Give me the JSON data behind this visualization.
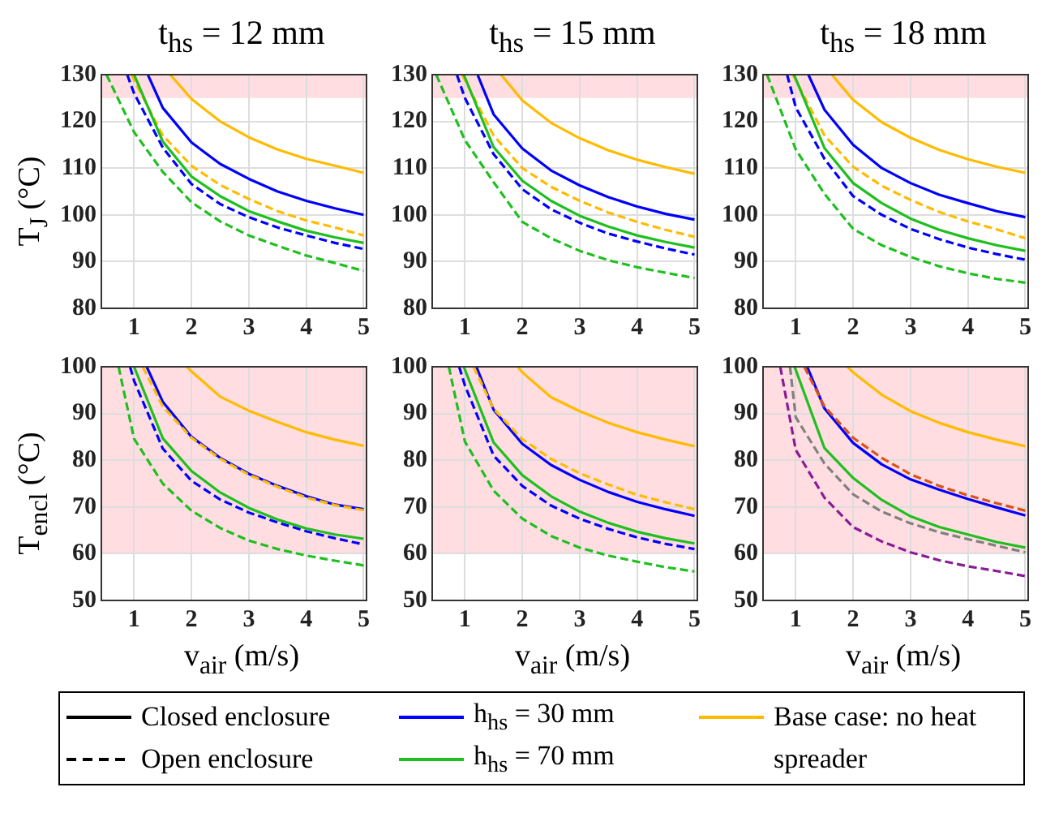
{
  "chart_data": [
    {
      "type": "line",
      "title": "t$_{hs}$ = 12 mm",
      "ylabel": "T$_{J}$ (°C)",
      "xlim": [
        0.43,
        5.05
      ],
      "xticks": [
        1,
        2,
        3,
        4,
        5
      ],
      "ylim": [
        80,
        130
      ],
      "yticks": [
        80,
        90,
        100,
        110,
        120,
        130
      ],
      "grid": true,
      "legend": false,
      "bands": [
        {
          "axis": "y",
          "from": 125,
          "to": 130,
          "color": "#ffdde1"
        }
      ],
      "series": [
        {
          "color": "#ffbb00",
          "line_style": "solid",
          "x": [
            1.63,
            2,
            2.5,
            3,
            3.5,
            4,
            4.5,
            5
          ],
          "values": [
            130,
            124.8,
            120,
            116.6,
            114,
            112,
            110.5,
            109
          ]
        },
        {
          "color": "#0000ff",
          "line_style": "solid",
          "x": [
            1.24,
            1.5,
            2,
            2.5,
            3,
            3.5,
            4,
            4.5,
            5
          ],
          "values": [
            130,
            122.9,
            115.5,
            110.9,
            107.7,
            105,
            103,
            101.4,
            100
          ]
        },
        {
          "color": "#1fbf1f",
          "line_style": "solid",
          "x": [
            1,
            1.5,
            2,
            2.5,
            3,
            3.5,
            4,
            4.5,
            5
          ],
          "values": [
            130,
            115.7,
            108.2,
            104,
            100.8,
            98.6,
            96.6,
            95.2,
            94
          ]
        },
        {
          "color": "#ffbb00",
          "line_style": "dashed",
          "x": [
            0.95,
            1.5,
            2,
            2.5,
            3,
            3.5,
            4,
            4.5,
            5
          ],
          "values": [
            130,
            117,
            110.5,
            106.4,
            103.4,
            100.8,
            98.8,
            97.3,
            95.6
          ]
        },
        {
          "color": "#0000ff",
          "line_style": "dashed",
          "x": [
            0.88,
            1,
            1.5,
            2,
            2.5,
            3,
            3.5,
            4,
            4.5,
            5
          ],
          "values": [
            130,
            126,
            114.4,
            106.6,
            102.3,
            99.5,
            97.3,
            95.6,
            94,
            92.7
          ]
        },
        {
          "color": "#1fbf1f",
          "line_style": "dashed",
          "x": [
            0.52,
            1,
            1.5,
            2,
            2.5,
            3,
            3.5,
            4,
            4.5,
            5
          ],
          "values": [
            130,
            117.7,
            109.2,
            102.7,
            98.6,
            95.6,
            93.4,
            91.3,
            89.7,
            88
          ]
        }
      ]
    },
    {
      "type": "line",
      "title": "t$_{hs}$ = 15 mm",
      "xlim": [
        0.43,
        5.05
      ],
      "xticks": [
        1,
        2,
        3,
        4,
        5
      ],
      "ylim": [
        80,
        130
      ],
      "yticks": [
        80,
        90,
        100,
        110,
        120,
        130
      ],
      "grid": true,
      "legend": false,
      "bands": [
        {
          "axis": "y",
          "from": 125,
          "to": 130,
          "color": "#ffdde1"
        }
      ],
      "series": [
        {
          "color": "#ffbb00",
          "line_style": "solid",
          "x": [
            1.63,
            2,
            2.5,
            3,
            3.5,
            4,
            4.5,
            5
          ],
          "values": [
            130,
            124.5,
            119.7,
            116.4,
            113.8,
            111.8,
            110.2,
            108.8
          ]
        },
        {
          "color": "#0000ff",
          "line_style": "solid",
          "x": [
            1.22,
            1.5,
            2,
            2.5,
            3,
            3.5,
            4,
            4.5,
            5
          ],
          "values": [
            130,
            121.5,
            114.2,
            109.5,
            106.3,
            103.8,
            101.8,
            100.2,
            99
          ]
        },
        {
          "color": "#1fbf1f",
          "line_style": "solid",
          "x": [
            0.98,
            1.5,
            2,
            2.5,
            3,
            3.5,
            4,
            4.5,
            5
          ],
          "values": [
            130,
            114.5,
            107.3,
            103,
            99.8,
            97.5,
            95.6,
            94.2,
            93
          ]
        },
        {
          "color": "#ffbb00",
          "line_style": "dashed",
          "x": [
            0.95,
            1.5,
            2,
            2.5,
            3,
            3.5,
            4,
            4.5,
            5
          ],
          "values": [
            130,
            117,
            110,
            106,
            103,
            100.5,
            98.5,
            96.8,
            95.3
          ]
        },
        {
          "color": "#0000ff",
          "line_style": "dashed",
          "x": [
            0.86,
            1,
            1.5,
            2,
            2.5,
            3,
            3.5,
            4,
            4.5,
            5
          ],
          "values": [
            130,
            125,
            113,
            105.5,
            101.2,
            98.3,
            96,
            94.3,
            92.8,
            91.5
          ]
        },
        {
          "color": "#1fbf1f",
          "line_style": "dashed",
          "x": [
            0.5,
            1,
            1.5,
            2,
            2.5,
            3,
            3.5,
            4,
            4.5,
            5
          ],
          "values": [
            130,
            116,
            107,
            98.5,
            95,
            92.3,
            90.3,
            88.8,
            87.6,
            86.5
          ]
        }
      ]
    },
    {
      "type": "line",
      "title": "t$_{hs}$ = 18 mm",
      "xlim": [
        0.43,
        5.05
      ],
      "xticks": [
        1,
        2,
        3,
        4,
        5
      ],
      "ylim": [
        80,
        130
      ],
      "yticks": [
        80,
        90,
        100,
        110,
        120,
        130
      ],
      "grid": true,
      "legend": false,
      "bands": [
        {
          "axis": "y",
          "from": 125,
          "to": 130,
          "color": "#ffdde1"
        }
      ],
      "series": [
        {
          "color": "#ffbb00",
          "line_style": "solid",
          "x": [
            1.63,
            2,
            2.5,
            3,
            3.5,
            4,
            4.5,
            5
          ],
          "values": [
            130,
            124.6,
            119.8,
            116.5,
            113.9,
            111.9,
            110.3,
            109
          ]
        },
        {
          "color": "#0000ff",
          "line_style": "solid",
          "x": [
            1.22,
            1.5,
            2,
            2.5,
            3,
            3.5,
            4,
            4.5,
            5
          ],
          "values": [
            130,
            122.5,
            115,
            110,
            106.8,
            104.3,
            102.5,
            100.8,
            99.5
          ]
        },
        {
          "color": "#1fbf1f",
          "line_style": "solid",
          "x": [
            0.97,
            1.5,
            2,
            2.5,
            3,
            3.5,
            4,
            4.5,
            5
          ],
          "values": [
            130,
            114.3,
            106.8,
            102.5,
            99.2,
            96.8,
            95,
            93.5,
            92.3
          ]
        },
        {
          "color": "#ffbb00",
          "line_style": "dashed",
          "x": [
            0.95,
            1.5,
            2,
            2.5,
            3,
            3.5,
            4,
            4.5,
            5
          ],
          "values": [
            130,
            117,
            110.3,
            106.2,
            103.2,
            100.6,
            98.6,
            96.9,
            95
          ]
        },
        {
          "color": "#0000ff",
          "line_style": "dashed",
          "x": [
            0.85,
            1,
            1.5,
            2,
            2.5,
            3,
            3.5,
            4,
            4.5,
            5
          ],
          "values": [
            130,
            123,
            112,
            104,
            100,
            97,
            94.8,
            93,
            91.6,
            90.4
          ]
        },
        {
          "color": "#1fbf1f",
          "line_style": "dashed",
          "x": [
            0.5,
            1,
            1.5,
            2,
            2.5,
            3,
            3.5,
            4,
            4.5,
            5
          ],
          "values": [
            130,
            114,
            104.5,
            97,
            93.5,
            91,
            89,
            87.5,
            86.3,
            85.5
          ]
        }
      ]
    },
    {
      "type": "line",
      "xlabel": "v$_{air}$ (m/s)",
      "ylabel": "T$_{encl}$ (°C)",
      "xlim": [
        0.43,
        5.05
      ],
      "xticks": [
        1,
        2,
        3,
        4,
        5
      ],
      "ylim": [
        50,
        100
      ],
      "yticks": [
        50,
        60,
        70,
        80,
        90,
        100
      ],
      "grid": true,
      "legend": false,
      "bands": [
        {
          "axis": "y",
          "from": 60,
          "to": 100,
          "color": "#ffdde1"
        }
      ],
      "series": [
        {
          "color": "#ffbb00",
          "line_style": "solid",
          "x": [
            1.92,
            2,
            2.5,
            3,
            3.5,
            4,
            4.5,
            5
          ],
          "values": [
            100,
            99,
            93.6,
            90.6,
            88.2,
            86,
            84.4,
            83.1
          ]
        },
        {
          "color": "#ffbb00",
          "line_style": "dashed",
          "x": [
            1.15,
            1.5,
            2,
            2.5,
            3,
            3.5,
            4,
            4.5,
            5
          ],
          "values": [
            100,
            91.5,
            84.8,
            80.3,
            76.9,
            74.3,
            72,
            70.4,
            69.3
          ]
        },
        {
          "color": "#0000ff",
          "line_style": "solid",
          "x": [
            1.22,
            1.5,
            2,
            2.5,
            3,
            3.5,
            4,
            4.5,
            5
          ],
          "values": [
            100,
            92.5,
            85,
            80.5,
            77.1,
            74.5,
            72.3,
            70.5,
            69.5
          ]
        },
        {
          "color": "#1fbf1f",
          "line_style": "solid",
          "x": [
            1,
            1.5,
            2,
            2.5,
            3,
            3.5,
            4,
            4.5,
            5
          ],
          "values": [
            100,
            84.7,
            77.7,
            73.1,
            69.8,
            67.3,
            65.4,
            64.1,
            63.2
          ]
        },
        {
          "color": "#0000ff",
          "line_style": "dashed",
          "x": [
            0.93,
            1,
            1.5,
            2,
            2.5,
            3,
            3.5,
            4,
            4.5,
            5
          ],
          "values": [
            100,
            97,
            82.5,
            75.6,
            71.6,
            68.8,
            66.7,
            64.8,
            63.3,
            62
          ]
        },
        {
          "color": "#1fbf1f",
          "line_style": "dashed",
          "x": [
            0.73,
            1,
            1.5,
            2,
            2.5,
            3,
            3.5,
            4,
            4.5,
            5
          ],
          "values": [
            100,
            84.6,
            75,
            69.2,
            65.5,
            62.8,
            61,
            59.6,
            58.5,
            57.5
          ]
        }
      ]
    },
    {
      "type": "line",
      "xlabel": "v$_{air}$ (m/s)",
      "xlim": [
        0.43,
        5.05
      ],
      "xticks": [
        1,
        2,
        3,
        4,
        5
      ],
      "ylim": [
        50,
        100
      ],
      "yticks": [
        50,
        60,
        70,
        80,
        90,
        100
      ],
      "grid": true,
      "legend": false,
      "bands": [
        {
          "axis": "y",
          "from": 60,
          "to": 100,
          "color": "#ffdde1"
        }
      ],
      "series": [
        {
          "color": "#ffbb00",
          "line_style": "solid",
          "x": [
            1.92,
            2,
            2.5,
            3,
            3.5,
            4,
            4.5,
            5
          ],
          "values": [
            100,
            98.8,
            93.5,
            90.5,
            88,
            86,
            84.4,
            83
          ]
        },
        {
          "color": "#ffbb00",
          "line_style": "dashed",
          "x": [
            1.15,
            1.5,
            2,
            2.5,
            3,
            3.5,
            4,
            4.5,
            5
          ],
          "values": [
            100,
            91,
            84.5,
            80.3,
            77.2,
            74.8,
            72.6,
            71,
            69.5
          ]
        },
        {
          "color": "#0000ff",
          "line_style": "solid",
          "x": [
            1.2,
            1.5,
            2,
            2.5,
            3,
            3.5,
            4,
            4.5,
            5
          ],
          "values": [
            100,
            90.8,
            83.5,
            79,
            75.8,
            73.2,
            71.1,
            69.5,
            68.1
          ]
        },
        {
          "color": "#1fbf1f",
          "line_style": "solid",
          "x": [
            0.98,
            1.5,
            2,
            2.5,
            3,
            3.5,
            4,
            4.5,
            5
          ],
          "values": [
            100,
            83.8,
            76.8,
            72.3,
            69,
            66.6,
            64.7,
            63.3,
            62.2
          ]
        },
        {
          "color": "#0000ff",
          "line_style": "dashed",
          "x": [
            0.9,
            1,
            1.5,
            2,
            2.5,
            3,
            3.5,
            4,
            4.5,
            5
          ],
          "values": [
            100,
            96,
            81,
            74.5,
            70.3,
            67.5,
            65.3,
            63.5,
            62.1,
            61
          ]
        },
        {
          "color": "#1fbf1f",
          "line_style": "dashed",
          "x": [
            0.72,
            1,
            1.5,
            2,
            2.5,
            3,
            3.5,
            4,
            4.5,
            5
          ],
          "values": [
            100,
            84,
            73.5,
            67.5,
            63.8,
            61.3,
            59.6,
            58.3,
            57.1,
            56.2
          ]
        }
      ]
    },
    {
      "type": "line",
      "xlabel": "v$_{air}$ (m/s)",
      "xlim": [
        0.43,
        5.05
      ],
      "xticks": [
        1,
        2,
        3,
        4,
        5
      ],
      "ylim": [
        50,
        100
      ],
      "yticks": [
        50,
        60,
        70,
        80,
        90,
        100
      ],
      "grid": true,
      "legend": false,
      "bands": [
        {
          "axis": "y",
          "from": 60,
          "to": 100,
          "color": "#ffdde1"
        }
      ],
      "series": [
        {
          "color": "#ffbb00",
          "line_style": "solid",
          "x": [
            1.9,
            2,
            2.5,
            3,
            3.5,
            4,
            4.5,
            5
          ],
          "values": [
            100,
            98.8,
            94,
            90.5,
            88,
            86,
            84.4,
            83
          ]
        },
        {
          "color": "#d95319",
          "line_style": "dashed",
          "x": [
            1.15,
            1.5,
            2,
            2.5,
            3,
            3.5,
            4,
            4.5,
            5
          ],
          "values": [
            100,
            91.5,
            84.8,
            80.5,
            77,
            74.5,
            72.5,
            70.8,
            69.2
          ]
        },
        {
          "color": "#0000ff",
          "line_style": "solid",
          "x": [
            1.2,
            1.5,
            2,
            2.5,
            3,
            3.5,
            4,
            4.5,
            5
          ],
          "values": [
            100,
            91.1,
            83.7,
            79.1,
            75.9,
            73.7,
            71.7,
            69.9,
            68.2
          ]
        },
        {
          "color": "#1fbf1f",
          "line_style": "solid",
          "x": [
            0.98,
            1.5,
            2,
            2.5,
            3,
            3.5,
            4,
            4.5,
            5
          ],
          "values": [
            100,
            82.6,
            76.2,
            71.5,
            68,
            65.7,
            64.1,
            62.5,
            61.3
          ]
        },
        {
          "color": "#808080",
          "line_style": "dashed",
          "x": [
            0.9,
            1,
            1.5,
            2,
            2.5,
            3,
            3.5,
            4,
            4.5,
            5
          ],
          "values": [
            100,
            89.2,
            79.3,
            72.7,
            69,
            66.5,
            64.6,
            63.1,
            61.7,
            60.3
          ]
        },
        {
          "color": "#8b1a96",
          "line_style": "dashed",
          "x": [
            0.73,
            1,
            1.5,
            2,
            2.5,
            3,
            3.5,
            4,
            4.5,
            5
          ],
          "values": [
            100,
            82.2,
            72,
            65.7,
            62.6,
            60.3,
            58.6,
            57.3,
            56.3,
            55.2
          ]
        }
      ]
    },
    {
      "type": "other",
      "annotations": [
        "Closed enclosure",
        "Open enclosure",
        "h$_{hs}$ = 30 mm",
        "h$_{hs}$ = 70 mm",
        "Base case: no heat spreader"
      ],
      "colors": [
        "#000000",
        "#000000",
        "#0000ff",
        "#1fbf1f",
        "#ffbb00"
      ]
    }
  ]
}
